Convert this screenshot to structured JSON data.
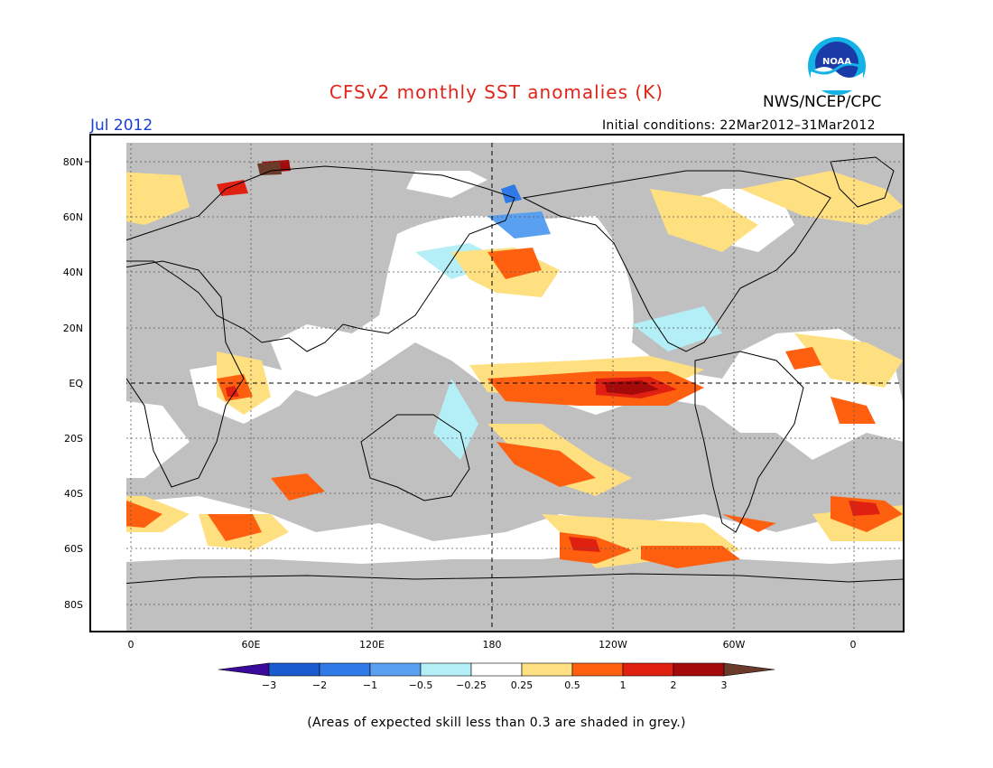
{
  "header": {
    "title": "CFSv2 monthly SST anomalies (K)",
    "agency": "NWS/NCEP/CPC",
    "logo_text": "NOAA",
    "month": "Jul 2012",
    "initial_conditions": "Initial conditions: 22Mar2012–31Mar2012"
  },
  "map": {
    "lat_labels": [
      "80N",
      "60N",
      "40N",
      "20N",
      "EQ",
      "20S",
      "40S",
      "60S",
      "80S"
    ],
    "lon_labels": [
      "0",
      "60E",
      "120E",
      "180",
      "120W",
      "60W",
      "0"
    ],
    "colors": {
      "land": "#c0c0c0",
      "ocean_skill": "#ffffff",
      "frame": "#000000"
    }
  },
  "legend": {
    "tick_labels": [
      "−3",
      "−2",
      "−1",
      "−0.5",
      "−0.25",
      "0.25",
      "0.5",
      "1",
      "2",
      "3"
    ],
    "colors": [
      "#3a0a9a",
      "#1a5cd0",
      "#2f7ae6",
      "#5aa0f0",
      "#b4eef6",
      "#ffffff",
      "#ffe080",
      "#ff6010",
      "#e02010",
      "#a50a0a",
      "#6a3b2b"
    ]
  },
  "footnote": "(Areas of expected skill less than 0.3 are shaded in grey.)"
}
